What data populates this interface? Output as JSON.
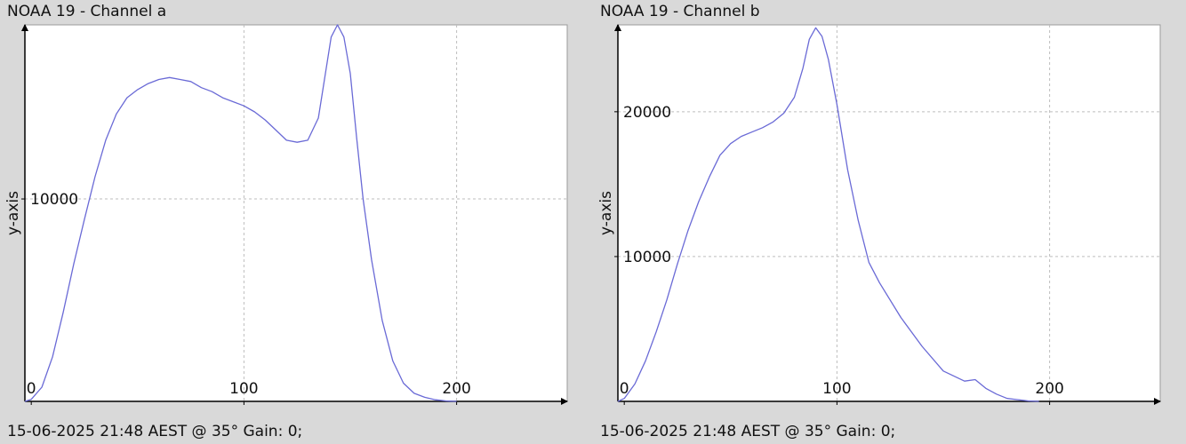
{
  "colors": {
    "line": "#6a6ad6",
    "plot_bg": "#ffffff",
    "grid": "#bdbdbd",
    "axis": "#000000"
  },
  "chart_data": [
    {
      "type": "line",
      "title": "NOAA 19 - Channel a",
      "ylabel": "y-axis",
      "xlabel": "",
      "footer": "15-06-2025 21:48 AEST @ 35° Gain: 0;",
      "xlim": [
        -3,
        252
      ],
      "ylim": [
        0,
        18600
      ],
      "xticks": [
        0,
        100,
        200
      ],
      "yticks": [
        10000
      ],
      "grid": true,
      "series": [
        {
          "x": [
            -3,
            0,
            5,
            10,
            15,
            20,
            25,
            30,
            35,
            40,
            45,
            50,
            55,
            60,
            65,
            70,
            75,
            80,
            85,
            90,
            95,
            100,
            105,
            110,
            115,
            120,
            125,
            130,
            135,
            138,
            141,
            144,
            147,
            150,
            153,
            156,
            160,
            165,
            170,
            175,
            180,
            185,
            190,
            195,
            200
          ],
          "y": [
            0,
            100,
            700,
            2200,
            4400,
            6800,
            9000,
            11100,
            12900,
            14200,
            15000,
            15400,
            15700,
            15900,
            16000,
            15900,
            15800,
            15500,
            15300,
            15000,
            14800,
            14600,
            14300,
            13900,
            13400,
            12900,
            12800,
            12900,
            14000,
            16000,
            18000,
            18600,
            18000,
            16200,
            13000,
            10000,
            7000,
            4000,
            2000,
            900,
            400,
            200,
            80,
            20,
            0
          ]
        }
      ]
    },
    {
      "type": "line",
      "title": "NOAA 19 - Channel b",
      "ylabel": "y-axis",
      "xlabel": "",
      "footer": "15-06-2025 21:48 AEST @ 35° Gain: 0;",
      "xlim": [
        -3,
        252
      ],
      "ylim": [
        0,
        26000
      ],
      "xticks": [
        0,
        100,
        200
      ],
      "yticks": [
        10000,
        20000
      ],
      "grid": true,
      "series": [
        {
          "x": [
            -3,
            0,
            5,
            10,
            15,
            20,
            25,
            30,
            35,
            40,
            45,
            50,
            55,
            60,
            65,
            70,
            75,
            80,
            84,
            87,
            90,
            93,
            96,
            100,
            105,
            110,
            115,
            120,
            130,
            140,
            150,
            160,
            165,
            170,
            175,
            180,
            190,
            195
          ],
          "y": [
            0,
            200,
            1200,
            2800,
            4800,
            7000,
            9500,
            11800,
            13800,
            15500,
            17000,
            17800,
            18300,
            18600,
            18900,
            19300,
            19900,
            21000,
            23000,
            25000,
            25800,
            25200,
            23600,
            20500,
            16000,
            12500,
            9600,
            8200,
            5800,
            3800,
            2100,
            1400,
            1500,
            900,
            500,
            200,
            30,
            0
          ]
        }
      ]
    }
  ]
}
